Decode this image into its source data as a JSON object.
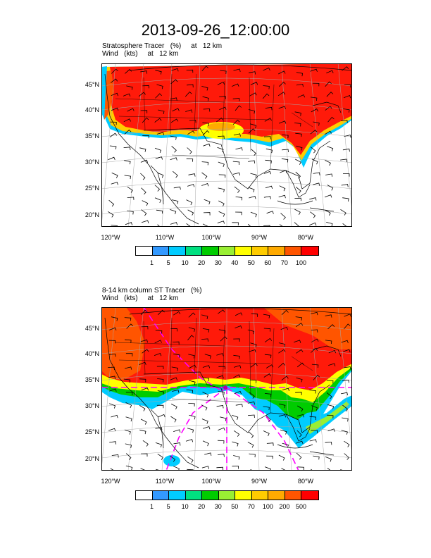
{
  "main_title": "2013-09-26_12:00:00",
  "panels": [
    {
      "title_line1": "Stratosphere Tracer   (%)     at   12 km",
      "title_line2": "Wind   (kts)     at   12 km",
      "lat_labels": [
        "45°N",
        "40°N",
        "35°N",
        "30°N",
        "25°N",
        "20°N"
      ],
      "lon_labels": [
        "120°W",
        "110°W",
        "100°W",
        "90°W",
        "80°W"
      ],
      "colorbar_labels": [
        "1",
        "5",
        "10",
        "20",
        "30",
        "40",
        "50",
        "60",
        "70",
        "100"
      ],
      "colorbar_colors": [
        "#ffffff",
        "#3399ff",
        "#00ccff",
        "#00e080",
        "#00cc00",
        "#99ee33",
        "#ffff00",
        "#ffcc00",
        "#ffaa00",
        "#ff5500",
        "#ff0000"
      ]
    },
    {
      "title_line1": "8-14 km column ST Tracer   (%)",
      "title_line2": "Wind   (kts)     at   12 km",
      "lat_labels": [
        "45°N",
        "40°N",
        "35°N",
        "30°N",
        "25°N",
        "20°N"
      ],
      "lon_labels": [
        "120°W",
        "110°W",
        "100°W",
        "90°W",
        "80°W"
      ],
      "colorbar_labels": [
        "1",
        "5",
        "10",
        "20",
        "30",
        "50",
        "70",
        "100",
        "200",
        "500"
      ],
      "colorbar_colors": [
        "#ffffff",
        "#3399ff",
        "#00ccff",
        "#00e080",
        "#00cc00",
        "#99ee33",
        "#ffff00",
        "#ffcc00",
        "#ffaa00",
        "#ff5500",
        "#ff0000"
      ]
    }
  ]
}
